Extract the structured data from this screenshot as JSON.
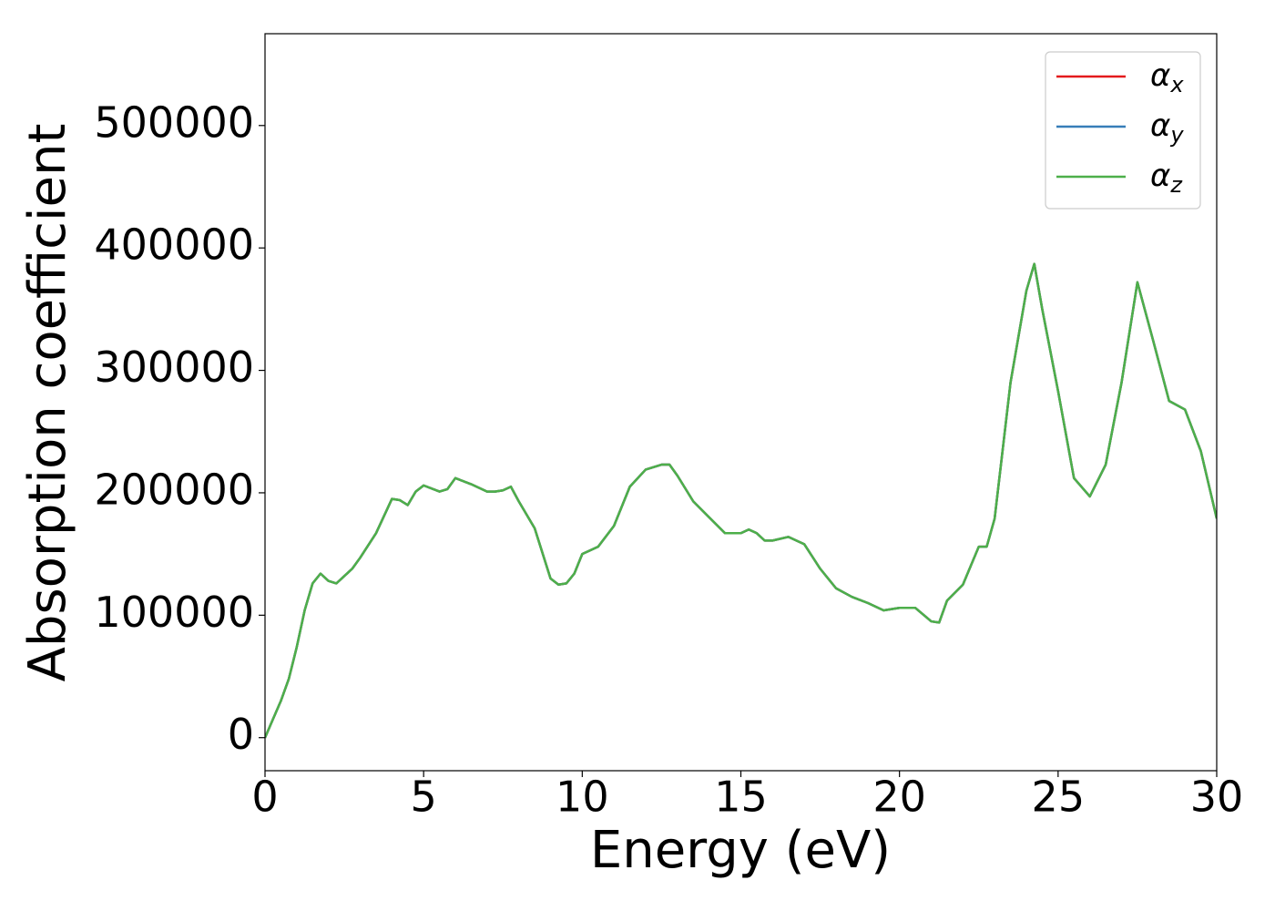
{
  "chart_data": {
    "type": "line",
    "xlabel": "Energy (eV)",
    "ylabel": "Absorption coefficient",
    "x": [
      0,
      0.25,
      0.5,
      0.75,
      1,
      1.25,
      1.5,
      1.75,
      2,
      2.25,
      2.5,
      2.75,
      3,
      3.5,
      4,
      4.25,
      4.5,
      4.75,
      5,
      5.5,
      5.75,
      6,
      6.5,
      7,
      7.25,
      7.5,
      7.75,
      8,
      8.5,
      9,
      9.25,
      9.5,
      9.75,
      10,
      10.5,
      11,
      11.5,
      12,
      12.5,
      12.75,
      13,
      13.5,
      14,
      14.5,
      15,
      15.25,
      15.5,
      15.75,
      16,
      16.5,
      17,
      17.5,
      18,
      18.5,
      19,
      19.5,
      20,
      20.5,
      21,
      21.25,
      21.5,
      22,
      22.5,
      22.75,
      23,
      23.5,
      24,
      24.25,
      24.5,
      25,
      25.5,
      26,
      26.5,
      27,
      27.5,
      28,
      28.5,
      29,
      29.5,
      30
    ],
    "series": [
      {
        "name": "αx",
        "color": "#e41a1c",
        "values": [
          0,
          15000,
          30000,
          48000,
          74000,
          104000,
          126000,
          134000,
          128000,
          126000,
          132000,
          138000,
          147000,
          167000,
          195000,
          194000,
          190000,
          201000,
          206000,
          201000,
          203000,
          212000,
          207000,
          201000,
          201000,
          202000,
          205000,
          193000,
          171000,
          130000,
          125000,
          126000,
          134000,
          150000,
          156000,
          173000,
          205000,
          219000,
          223000,
          223000,
          214000,
          193000,
          180000,
          167000,
          167000,
          170000,
          167000,
          161000,
          161000,
          164000,
          158000,
          138000,
          122000,
          115000,
          110000,
          104000,
          106000,
          106000,
          95000,
          94000,
          112000,
          125000,
          156000,
          156000,
          179000,
          290000,
          365000,
          387000,
          350000,
          283000,
          212000,
          197000,
          223000,
          290000,
          372000,
          324000,
          275000,
          268000,
          234000,
          179000
        ]
      },
      {
        "name": "αy",
        "color": "#377eb8",
        "values": [
          0,
          15000,
          30000,
          48000,
          74000,
          104000,
          126000,
          134000,
          128000,
          126000,
          132000,
          138000,
          147000,
          167000,
          195000,
          194000,
          190000,
          201000,
          206000,
          201000,
          203000,
          212000,
          207000,
          201000,
          201000,
          202000,
          205000,
          193000,
          171000,
          130000,
          125000,
          126000,
          134000,
          150000,
          156000,
          173000,
          205000,
          219000,
          223000,
          223000,
          214000,
          193000,
          180000,
          167000,
          167000,
          170000,
          167000,
          161000,
          161000,
          164000,
          158000,
          138000,
          122000,
          115000,
          110000,
          104000,
          106000,
          106000,
          95000,
          94000,
          112000,
          125000,
          156000,
          156000,
          179000,
          290000,
          365000,
          387000,
          350000,
          283000,
          212000,
          197000,
          223000,
          290000,
          372000,
          324000,
          275000,
          268000,
          234000,
          179000
        ]
      },
      {
        "name": "αz",
        "color": "#4daf4a",
        "values": [
          0,
          15000,
          30000,
          48000,
          74000,
          104000,
          126000,
          134000,
          128000,
          126000,
          132000,
          138000,
          147000,
          167000,
          195000,
          194000,
          190000,
          201000,
          206000,
          201000,
          203000,
          212000,
          207000,
          201000,
          201000,
          202000,
          205000,
          193000,
          171000,
          130000,
          125000,
          126000,
          134000,
          150000,
          156000,
          173000,
          205000,
          219000,
          223000,
          223000,
          214000,
          193000,
          180000,
          167000,
          167000,
          170000,
          167000,
          161000,
          161000,
          164000,
          158000,
          138000,
          122000,
          115000,
          110000,
          104000,
          106000,
          106000,
          95000,
          94000,
          112000,
          125000,
          156000,
          156000,
          179000,
          290000,
          365000,
          387000,
          350000,
          283000,
          212000,
          197000,
          223000,
          290000,
          372000,
          324000,
          275000,
          268000,
          234000,
          179000
        ]
      }
    ],
    "xlim": [
      0,
      30
    ],
    "xticks": [
      0,
      5,
      10,
      15,
      20,
      25,
      30
    ],
    "ylim": [
      -27000,
      575000
    ],
    "yticks": [
      0,
      100000,
      200000,
      300000,
      400000,
      500000
    ],
    "legend": "upper right"
  }
}
